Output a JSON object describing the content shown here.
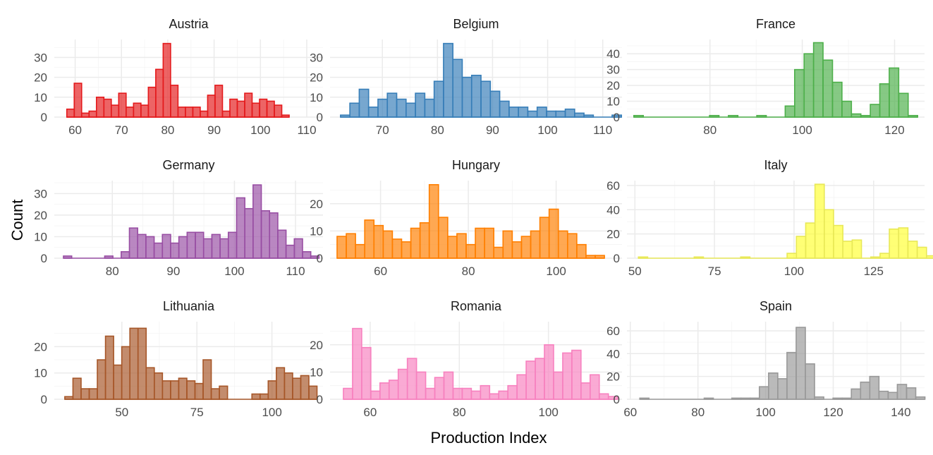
{
  "chart_data": {
    "type": "bar",
    "xlabel": "Production Index",
    "ylabel": "Count",
    "grid": true,
    "panels": [
      {
        "name": "Austria",
        "color": "#E41A1C",
        "xlim": [
          55.5,
          113.5
        ],
        "ylim": [
          0,
          39
        ],
        "xticks": [
          60,
          70,
          80,
          90,
          100,
          110
        ],
        "yticks": [
          0,
          10,
          20,
          30
        ],
        "bin_start": 58.2,
        "bin_width": 1.6,
        "counts": [
          4,
          17,
          2,
          3,
          10,
          9,
          6,
          12,
          5,
          7,
          6,
          15,
          24,
          37,
          16,
          5,
          5,
          5,
          3,
          11,
          16,
          3,
          9,
          8,
          12,
          7,
          9,
          8,
          6,
          1
        ]
      },
      {
        "name": "Belgium",
        "color": "#377EB8",
        "xlim": [
          60.5,
          113.5
        ],
        "ylim": [
          0,
          39
        ],
        "xticks": [
          70,
          80,
          90,
          100,
          110
        ],
        "yticks": [
          0,
          10,
          20,
          30
        ],
        "bin_start": 62.4,
        "bin_width": 1.7,
        "counts": [
          1,
          7,
          14,
          5,
          9,
          12,
          9,
          7,
          12,
          9,
          18,
          37,
          29,
          20,
          21,
          18,
          13,
          8,
          5,
          5,
          3,
          5,
          3,
          3,
          4,
          2,
          1,
          0,
          0,
          1
        ]
      },
      {
        "name": "France",
        "color": "#4DAF4A",
        "xlim": [
          62,
          126.5
        ],
        "ylim": [
          0,
          49
        ],
        "xticks": [
          80,
          100,
          120
        ],
        "yticks": [
          0,
          10,
          20,
          30,
          40
        ],
        "bin_start": 63.5,
        "bin_width": 2.05,
        "counts": [
          1,
          0,
          0,
          0,
          0,
          0,
          0,
          0,
          1,
          0,
          1,
          0,
          0,
          1,
          0,
          0,
          7,
          30,
          40,
          47,
          36,
          22,
          10,
          2,
          1,
          8,
          21,
          31,
          15,
          1
        ]
      },
      {
        "name": "Germany",
        "color": "#984EA3",
        "xlim": [
          70.5,
          114.5
        ],
        "ylim": [
          0,
          36
        ],
        "xticks": [
          80,
          90,
          100,
          110
        ],
        "yticks": [
          0,
          10,
          20,
          30
        ],
        "bin_start": 72,
        "bin_width": 1.35,
        "counts": [
          1,
          0,
          0,
          0,
          0,
          1,
          0,
          3,
          14,
          11,
          10,
          7,
          11,
          7,
          10,
          12,
          12,
          9,
          11,
          9,
          12,
          28,
          23,
          34,
          22,
          21,
          13,
          6,
          9,
          3,
          1
        ]
      },
      {
        "name": "Hungary",
        "color": "#FF7F00",
        "xlim": [
          48.5,
          115
        ],
        "ylim": [
          0,
          28.5
        ],
        "xticks": [
          60,
          80,
          100
        ],
        "yticks": [
          0,
          10,
          20
        ],
        "bin_start": 50.1,
        "bin_width": 2.1,
        "counts": [
          8,
          9,
          5,
          14,
          12,
          10,
          7,
          6,
          11,
          13,
          27,
          15,
          8,
          9,
          5,
          11,
          11,
          4,
          10,
          6,
          8,
          10,
          15,
          18,
          10,
          9,
          5,
          1,
          1
        ]
      },
      {
        "name": "Italy",
        "color": "#FFFF33",
        "xlim": [
          47.5,
          141
        ],
        "ylim": [
          0,
          64
        ],
        "xticks": [
          50,
          75,
          100,
          125
        ],
        "yticks": [
          0,
          20,
          40,
          60
        ],
        "bin_start": 51.1,
        "bin_width": 2.92,
        "counts": [
          1,
          0,
          0,
          0,
          0,
          0,
          1,
          0,
          0,
          0,
          0,
          1,
          0,
          0,
          0,
          0,
          4,
          18,
          29,
          61,
          40,
          27,
          14,
          15,
          0,
          1,
          4,
          24,
          25,
          14,
          9,
          2
        ]
      },
      {
        "name": "Lithuania",
        "color": "#A65628",
        "xlim": [
          27.5,
          117
        ],
        "ylim": [
          0,
          29.5
        ],
        "xticks": [
          50,
          75,
          100
        ],
        "yticks": [
          0,
          10,
          20
        ],
        "bin_start": 31,
        "bin_width": 2.71,
        "counts": [
          1,
          8,
          4,
          4,
          15,
          24,
          13,
          20,
          27,
          27,
          12,
          10,
          7,
          7,
          8,
          7,
          6,
          15,
          4,
          5,
          0,
          0,
          0,
          2,
          2,
          7,
          12,
          10,
          8,
          9,
          5
        ]
      },
      {
        "name": "Romania",
        "color": "#F781BF",
        "xlim": [
          51,
          116.5
        ],
        "ylim": [
          0,
          28.5
        ],
        "xticks": [
          60,
          80,
          100
        ],
        "yticks": [
          0,
          10,
          20
        ],
        "bin_start": 54,
        "bin_width": 2.05,
        "counts": [
          4,
          26,
          19,
          3,
          6,
          7,
          11,
          15,
          10,
          4,
          8,
          10,
          4,
          4,
          3,
          5,
          2,
          3,
          5,
          9,
          14,
          15,
          20,
          10,
          17,
          18,
          6,
          9,
          2,
          1
        ]
      },
      {
        "name": "Spain",
        "color": "#999999",
        "xlim": [
          59,
          147
        ],
        "ylim": [
          0,
          68
        ],
        "xticks": [
          60,
          80,
          100,
          120,
          140
        ],
        "yticks": [
          0,
          20,
          40,
          60
        ],
        "bin_start": 62.8,
        "bin_width": 2.72,
        "counts": [
          1,
          0,
          0,
          0,
          0,
          0,
          0,
          1,
          0,
          0,
          1,
          1,
          1,
          11,
          23,
          18,
          41,
          63,
          31,
          2,
          0,
          1,
          1,
          9,
          15,
          20,
          7,
          6,
          13,
          10,
          2
        ]
      }
    ]
  }
}
